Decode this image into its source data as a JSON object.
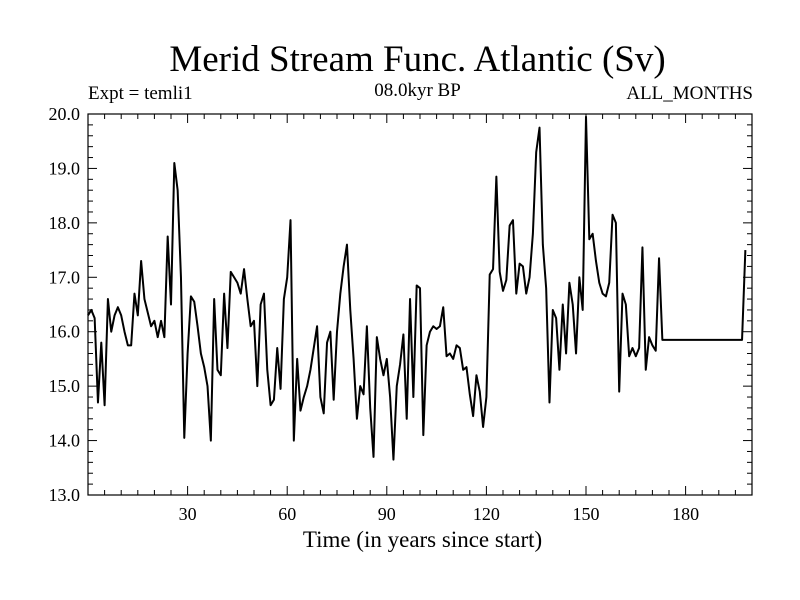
{
  "chart_data": {
    "type": "line",
    "title": "Merid Stream Func. Atlantic (Sv)",
    "subtitle": "08.0kyr BP",
    "left_annotation": "Expt = temli1",
    "right_annotation": "ALL_MONTHS",
    "xlabel": "Time (in years since start)",
    "ylabel": "",
    "xlim": [
      0,
      200
    ],
    "ylim": [
      13.0,
      20.0
    ],
    "x_ticks": [
      30,
      60,
      90,
      120,
      150,
      180
    ],
    "y_ticks": [
      "13.0",
      "14.0",
      "15.0",
      "16.0",
      "17.0",
      "18.0",
      "19.0",
      "20.0"
    ],
    "series": [
      {
        "name": "Merid Stream Func. Atlantic",
        "x_start": 0,
        "x_step": 1,
        "values": [
          16.3,
          16.4,
          16.25,
          14.7,
          15.8,
          14.65,
          16.6,
          16.0,
          16.3,
          16.45,
          16.3,
          16.0,
          15.75,
          15.75,
          16.7,
          16.3,
          17.3,
          16.6,
          16.35,
          16.1,
          16.2,
          15.9,
          16.2,
          15.9,
          17.75,
          16.5,
          19.1,
          18.6,
          17.0,
          14.05,
          15.6,
          16.65,
          16.55,
          16.1,
          15.6,
          15.35,
          15.0,
          14.0,
          16.6,
          15.3,
          15.2,
          16.7,
          15.7,
          17.1,
          17.0,
          16.9,
          16.7,
          17.15,
          16.6,
          16.1,
          16.2,
          15.0,
          16.5,
          16.7,
          15.3,
          14.65,
          14.75,
          15.7,
          14.95,
          16.6,
          17.0,
          18.05,
          14.0,
          15.5,
          14.55,
          14.8,
          15.0,
          15.3,
          15.7,
          16.1,
          14.8,
          14.5,
          15.8,
          16.0,
          14.75,
          16.0,
          16.7,
          17.2,
          17.6,
          16.4,
          15.5,
          14.4,
          15.0,
          14.85,
          16.1,
          14.6,
          13.7,
          15.9,
          15.5,
          15.2,
          15.5,
          14.8,
          13.65,
          15.0,
          15.4,
          15.95,
          14.4,
          16.6,
          14.8,
          16.85,
          16.8,
          14.1,
          15.75,
          16.0,
          16.1,
          16.05,
          16.1,
          16.45,
          15.55,
          15.6,
          15.5,
          15.75,
          15.7,
          15.3,
          15.35,
          14.85,
          14.45,
          15.2,
          14.9,
          14.25,
          14.8,
          17.05,
          17.15,
          18.85,
          17.1,
          16.75,
          16.95,
          17.95,
          18.05,
          16.7,
          17.25,
          17.2,
          16.7,
          17.0,
          17.8,
          19.3,
          19.75,
          17.6,
          16.8,
          14.7,
          16.4,
          16.25,
          15.3,
          16.5,
          15.6,
          16.9,
          16.5,
          15.6,
          17.0,
          16.4,
          19.95,
          17.7,
          17.8,
          17.3,
          16.9,
          16.7,
          16.65,
          16.9,
          18.15,
          18.0,
          14.9,
          16.7,
          16.5,
          15.55,
          15.7,
          15.55,
          15.7,
          17.55,
          15.3,
          15.9,
          15.75,
          15.65,
          17.35,
          15.85,
          15.85,
          15.85,
          15.85,
          15.85,
          15.85,
          15.85,
          15.85,
          15.85,
          15.85,
          15.85,
          15.85,
          15.85,
          15.85,
          15.85,
          15.85,
          15.85,
          15.85,
          15.85,
          15.85,
          15.85,
          15.85,
          15.85,
          15.85,
          15.85,
          17.5
        ]
      }
    ],
    "grid": false
  }
}
